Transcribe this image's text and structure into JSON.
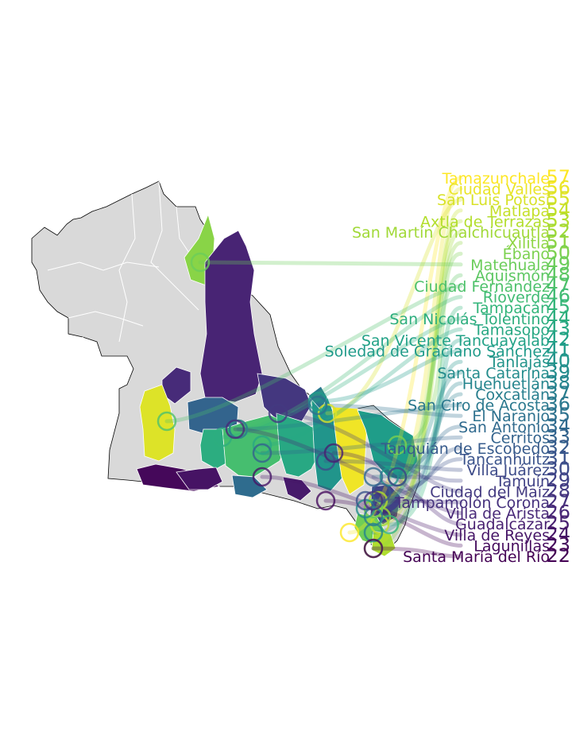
{
  "colors": {
    "background": "#ffffff",
    "base_fill": "#d9d9d9",
    "base_stroke": "#ffffff",
    "outline": "#000000",
    "palette": "viridis"
  },
  "labels": [
    {
      "name": "Tamazunchale",
      "rank": 57
    },
    {
      "name": "Ciudad Valles",
      "rank": 56
    },
    {
      "name": "San Luis Potosí",
      "rank": 55
    },
    {
      "name": "Matlapa",
      "rank": 54
    },
    {
      "name": "Axtla de Terrazas",
      "rank": 53
    },
    {
      "name": "San Martín Chalchicuautla",
      "rank": 52
    },
    {
      "name": "Xilitla",
      "rank": 51
    },
    {
      "name": "Ébano",
      "rank": 50
    },
    {
      "name": "Matehuala",
      "rank": 49
    },
    {
      "name": "Aquismón",
      "rank": 48
    },
    {
      "name": "Ciudad Fernández",
      "rank": 47
    },
    {
      "name": "Rioverde",
      "rank": 46
    },
    {
      "name": "Tampacán",
      "rank": 45
    },
    {
      "name": "San Nicolás Tolentino",
      "rank": 44
    },
    {
      "name": "Tamasopo",
      "rank": 43
    },
    {
      "name": "San Vicente Tancuayalab",
      "rank": 42
    },
    {
      "name": "Soledad de Graciano Sánchez",
      "rank": 41
    },
    {
      "name": "Tanlajás",
      "rank": 40
    },
    {
      "name": "Santa Catarina",
      "rank": 39
    },
    {
      "name": "Huehuetlán",
      "rank": 38
    },
    {
      "name": "Coxcatlán",
      "rank": 37
    },
    {
      "name": "San Ciro de Acosta",
      "rank": 36
    },
    {
      "name": "El Naranjo",
      "rank": 35
    },
    {
      "name": "San Antonio",
      "rank": 34
    },
    {
      "name": "Cerritos",
      "rank": 33
    },
    {
      "name": "Tanquián de Escobedo",
      "rank": 32
    },
    {
      "name": "Tancanhuitz",
      "rank": 31
    },
    {
      "name": "Villa Juárez",
      "rank": 30
    },
    {
      "name": "Tamuín",
      "rank": 29
    },
    {
      "name": "Ciudad del Maíz",
      "rank": 28
    },
    {
      "name": "Tampamolón Corona",
      "rank": 27
    },
    {
      "name": "Villa de Arista",
      "rank": 26
    },
    {
      "name": "Guadalcázar",
      "rank": 25
    },
    {
      "name": "Villa de Reyes",
      "rank": 24
    },
    {
      "name": "Lagunillas",
      "rank": 23
    },
    {
      "name": "Santa María del Río",
      "rank": 22
    }
  ]
}
